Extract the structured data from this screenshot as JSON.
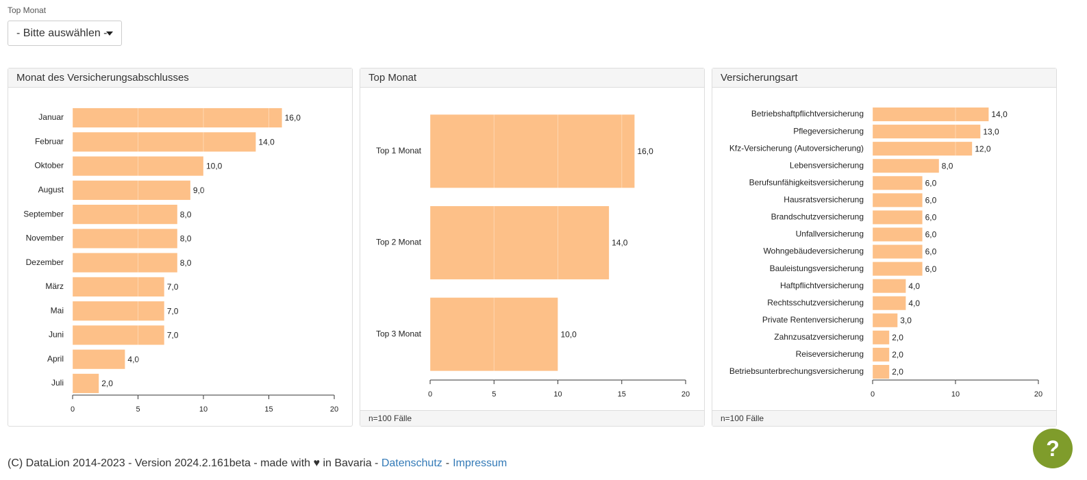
{
  "filter": {
    "label": "Top Monat",
    "dropdown": "- Bitte auswählen -"
  },
  "chart_data": [
    {
      "type": "bar",
      "orientation": "horizontal",
      "title": "Monat des Versicherungsabschlusses",
      "categories": [
        "Januar",
        "Februar",
        "Oktober",
        "August",
        "September",
        "November",
        "Dezember",
        "März",
        "Mai",
        "Juni",
        "April",
        "Juli"
      ],
      "values": [
        16,
        14,
        10,
        9,
        8,
        8,
        8,
        7,
        7,
        7,
        4,
        2
      ],
      "value_labels": [
        "16,0",
        "14,0",
        "10,0",
        "9,0",
        "8,0",
        "8,0",
        "8,0",
        "7,0",
        "7,0",
        "7,0",
        "4,0",
        "2,0"
      ],
      "color": "#fdc088",
      "xlim": [
        0,
        20
      ],
      "xticks": [
        0,
        5,
        10,
        15,
        20
      ],
      "grid": true
    },
    {
      "type": "bar",
      "orientation": "horizontal",
      "title": "Top Monat",
      "categories": [
        "Top 1 Monat",
        "Top 2 Monat",
        "Top 3 Monat"
      ],
      "values": [
        16,
        14,
        10
      ],
      "value_labels": [
        "16,0",
        "14,0",
        "10,0"
      ],
      "color": "#fdc088",
      "xlim": [
        0,
        20
      ],
      "xticks": [
        0,
        5,
        10,
        15,
        20
      ],
      "grid": true,
      "note": "n=100 Fälle"
    },
    {
      "type": "bar",
      "orientation": "horizontal",
      "title": "Versicherungsart",
      "categories": [
        "Betriebshaftpflichtversicherung",
        "Pflegeversicherung",
        "Kfz-Versicherung (Autoversicherung)",
        "Lebensversicherung",
        "Berufsunfähigkeitsversicherung",
        "Hausratsversicherung",
        "Brandschutzversicherung",
        "Unfallversicherung",
        "Wohngebäudeversicherung",
        "Bauleistungsversicherung",
        "Haftpflichtversicherung",
        "Rechtsschutzversicherung",
        "Private Rentenversicherung",
        "Zahnzusatzversicherung",
        "Reiseversicherung",
        "Betriebsunterbrechungsversicherung"
      ],
      "values": [
        14,
        13,
        12,
        8,
        6,
        6,
        6,
        6,
        6,
        6,
        4,
        4,
        3,
        2,
        2,
        2
      ],
      "value_labels": [
        "14,0",
        "13,0",
        "12,0",
        "8,0",
        "6,0",
        "6,0",
        "6,0",
        "6,0",
        "6,0",
        "6,0",
        "4,0",
        "4,0",
        "3,0",
        "2,0",
        "2,0",
        "2,0"
      ],
      "color": "#fdc088",
      "xlim": [
        0,
        20
      ],
      "xticks": [
        0,
        10,
        20
      ],
      "grid": true,
      "note": "n=100 Fälle"
    }
  ],
  "footer": {
    "text": "(C) DataLion 2014-2023 - Version 2024.2.161beta - made with ♥ in Bavaria -",
    "links": [
      "Datenschutz",
      "Impressum"
    ],
    "separator": "-"
  },
  "help_button": "?"
}
